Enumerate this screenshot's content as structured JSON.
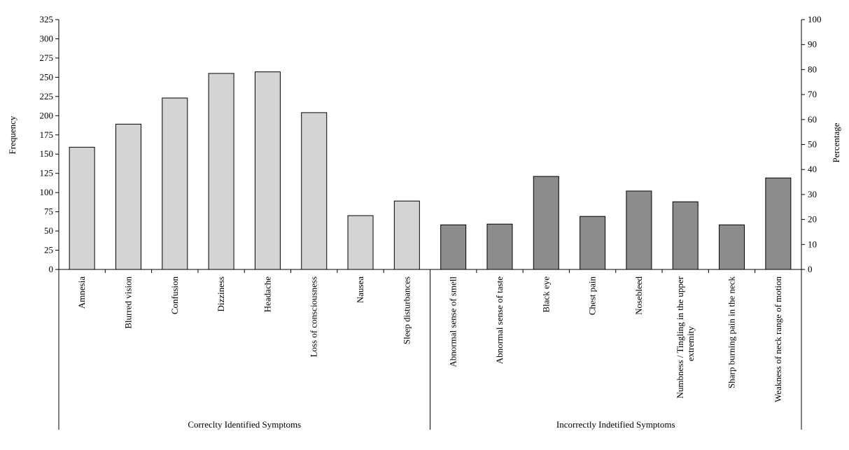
{
  "chart_data": {
    "type": "bar",
    "ylabel": "Frequency",
    "y2label": "Percentage",
    "ylim": [
      0,
      325
    ],
    "y_ticks": [
      0,
      25,
      50,
      75,
      100,
      125,
      150,
      175,
      200,
      225,
      250,
      275,
      300,
      325
    ],
    "y2lim": [
      0,
      100
    ],
    "y2_ticks": [
      0,
      10,
      20,
      30,
      40,
      50,
      60,
      70,
      80,
      90,
      100
    ],
    "grid": false,
    "categories": [
      "Amnesia",
      "Blurred vision",
      "Confusion",
      "Dizziness",
      "Headache",
      "Loss of consciousness",
      "Nausea",
      "Sleep disturbances",
      "Abnormal sense of smell",
      "Abnormal sense of taste",
      "Black eye",
      "Chest pain",
      "Nosebleed",
      "Numbness / Tingling in the upper extremity",
      "Sharp burning pain in the neck",
      "Weakness of neck range of motion"
    ],
    "values": [
      159,
      189,
      223,
      255,
      257,
      204,
      70,
      89,
      58,
      59,
      121,
      69,
      102,
      88,
      58,
      119
    ],
    "groups": [
      {
        "label": "Correclty Identified Symptoms",
        "count": 8,
        "color": "#d4d4d4"
      },
      {
        "label": "Incorrectly Indetified Symptoms",
        "count": 8,
        "color": "#8c8c8c"
      }
    ]
  }
}
